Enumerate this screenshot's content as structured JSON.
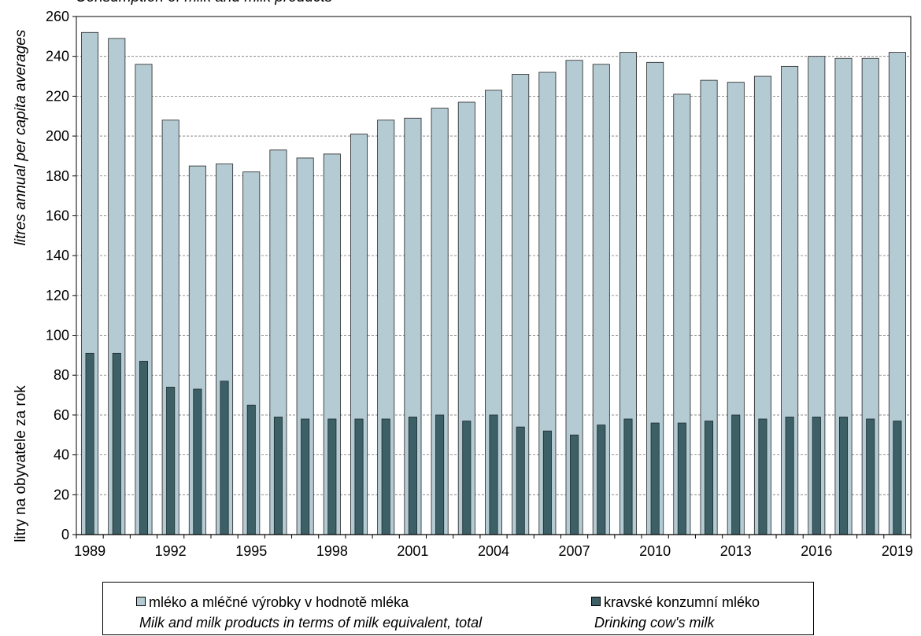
{
  "subtitle": "Consumption of milk and milk products",
  "chart_data": {
    "type": "bar",
    "ylabel_cs": "litry na obyvatele za rok",
    "ylabel_en": "litres annual per capita averages",
    "ylim": [
      0,
      260
    ],
    "yticks": [
      0,
      20,
      40,
      60,
      80,
      100,
      120,
      140,
      160,
      180,
      200,
      220,
      240,
      260
    ],
    "grid": "horizontal dashed",
    "categories": [
      "1989",
      "1990",
      "1991",
      "1992",
      "1993",
      "1994",
      "1995",
      "1996",
      "1997",
      "1998",
      "1999",
      "2000",
      "2001",
      "2002",
      "2003",
      "2004",
      "2005",
      "2006",
      "2007",
      "2008",
      "2009",
      "2010",
      "2011",
      "2012",
      "2013",
      "2014",
      "2015",
      "2016",
      "2017",
      "2018",
      "2019"
    ],
    "xtick_labels": [
      "1989",
      "1992",
      "1995",
      "1998",
      "2001",
      "2004",
      "2007",
      "2010",
      "2013",
      "2016",
      "2019"
    ],
    "series": [
      {
        "name": "mléko a mléčné výrobky v hodnotě mléka",
        "name_en": "Milk and milk products in terms of milk equivalent, total",
        "color": "#b5cbd3",
        "values": [
          252,
          249,
          236,
          208,
          185,
          186,
          182,
          193,
          189,
          191,
          201,
          208,
          209,
          214,
          217,
          223,
          231,
          232,
          238,
          236,
          242,
          237,
          221,
          228,
          227,
          230,
          235,
          240,
          239,
          239,
          242
        ]
      },
      {
        "name": "kravské konzumní mléko",
        "name_en": "Drinking cow's milk",
        "color": "#3d5f66",
        "values": [
          91,
          91,
          87,
          74,
          73,
          77,
          65,
          59,
          58,
          58,
          58,
          58,
          59,
          60,
          57,
          60,
          54,
          52,
          50,
          55,
          58,
          56,
          56,
          57,
          60,
          58,
          59,
          59,
          59,
          58,
          57
        ]
      }
    ],
    "legend_position": "bottom"
  }
}
